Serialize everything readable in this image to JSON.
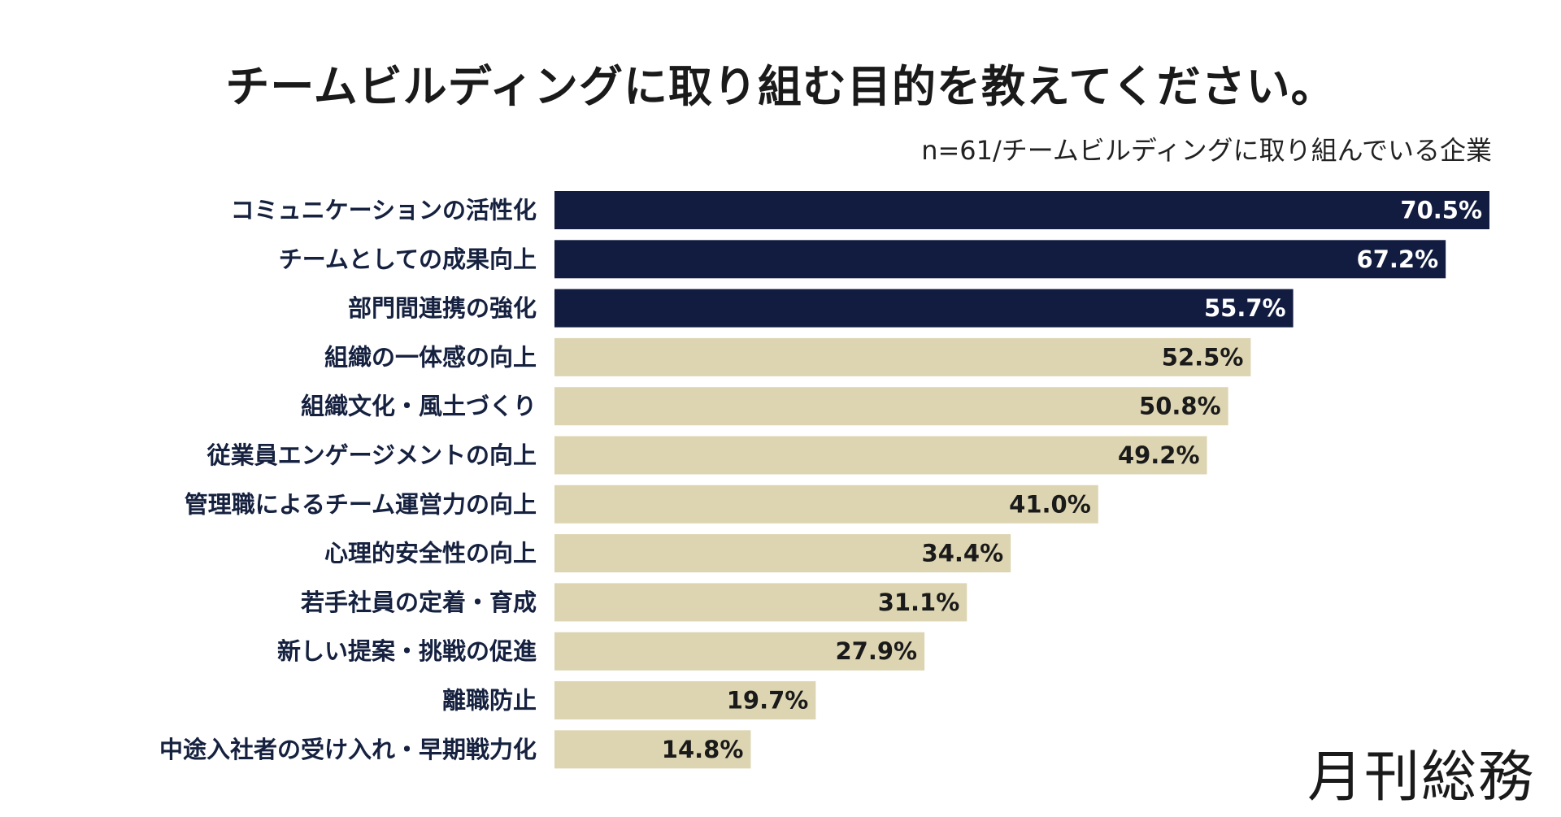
{
  "title": "チームビルディングに取り組む目的を教えてください。",
  "subtitle": "n=61/チームビルディングに取り組んでいる企業",
  "logo": "月刊総務",
  "chart_data": {
    "type": "bar",
    "orientation": "horizontal",
    "categories": [
      "コミュニケーションの活性化",
      "チームとしての成果向上",
      "部門間連携の強化",
      "組織の一体感の向上",
      "組織文化・風土づくり",
      "従業員エンゲージメントの向上",
      "管理職によるチーム運営力の向上",
      "心理的安全性の向上",
      "若手社員の定着・育成",
      "新しい提案・挑戦の促進",
      "離職防止",
      "中途入社者の受け入れ・早期戦力化"
    ],
    "values": [
      70.5,
      67.2,
      55.7,
      52.5,
      50.8,
      49.2,
      41.0,
      34.4,
      31.1,
      27.9,
      19.7,
      14.8
    ],
    "value_labels": [
      "70.5%",
      "67.2%",
      "55.7%",
      "52.5%",
      "50.8%",
      "49.2%",
      "41.0%",
      "34.4%",
      "31.1%",
      "27.9%",
      "19.7%",
      "14.8%"
    ],
    "highlight_count": 3,
    "colors": {
      "highlight": "#121c40",
      "normal": "#ddd5b2",
      "highlight_text": "#ffffff",
      "normal_text": "#1a1a1a"
    },
    "xlim": [
      0,
      70.5
    ],
    "grid": false,
    "legend": "none"
  }
}
